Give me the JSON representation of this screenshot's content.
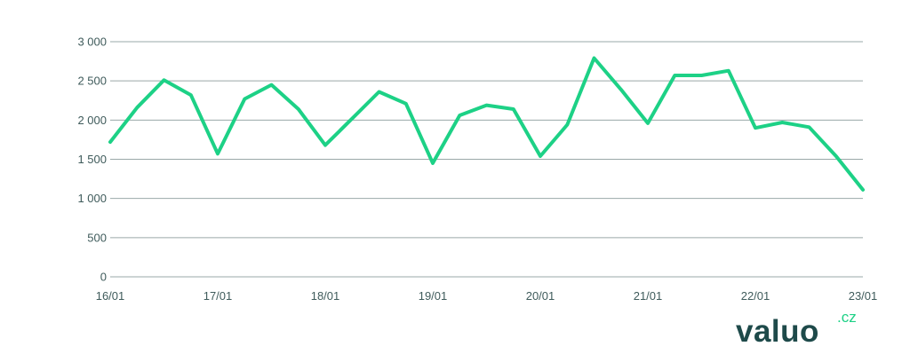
{
  "chart_data": {
    "type": "line",
    "title": "",
    "xlabel": "",
    "ylabel": "",
    "ylim": [
      0,
      3000
    ],
    "y_ticks": [
      "0",
      "500",
      "1 000",
      "1 500",
      "2 000",
      "2 500",
      "3 000"
    ],
    "y_tick_values": [
      0,
      500,
      1000,
      1500,
      2000,
      2500,
      3000
    ],
    "x_ticks": [
      "16/01",
      "17/01",
      "18/01",
      "19/01",
      "20/01",
      "21/01",
      "22/01",
      "23/01"
    ],
    "x_tick_values": [
      0,
      4,
      8,
      12,
      16,
      20,
      24,
      28
    ],
    "grid": "horizontal",
    "series": [
      {
        "color": "#1dd186",
        "x": [
          0,
          1,
          2,
          3,
          4,
          5,
          6,
          7,
          8,
          9,
          10,
          11,
          12,
          13,
          14,
          15,
          16,
          17,
          18,
          19,
          20,
          21,
          22,
          23,
          24,
          25,
          26,
          27,
          28
        ],
        "values": [
          1720,
          2160,
          2510,
          2320,
          1570,
          2270,
          2450,
          2140,
          1680,
          2020,
          2360,
          2210,
          1450,
          2060,
          2190,
          2140,
          1540,
          1940,
          2790,
          2390,
          1960,
          2570,
          2570,
          2630,
          1900,
          1970,
          1910,
          1540,
          1110
        ]
      }
    ]
  },
  "branding": {
    "logo_text": "valuo",
    "logo_suffix": ".cz",
    "logo_color": "#1e4a4a",
    "accent_color": "#1dd186"
  }
}
